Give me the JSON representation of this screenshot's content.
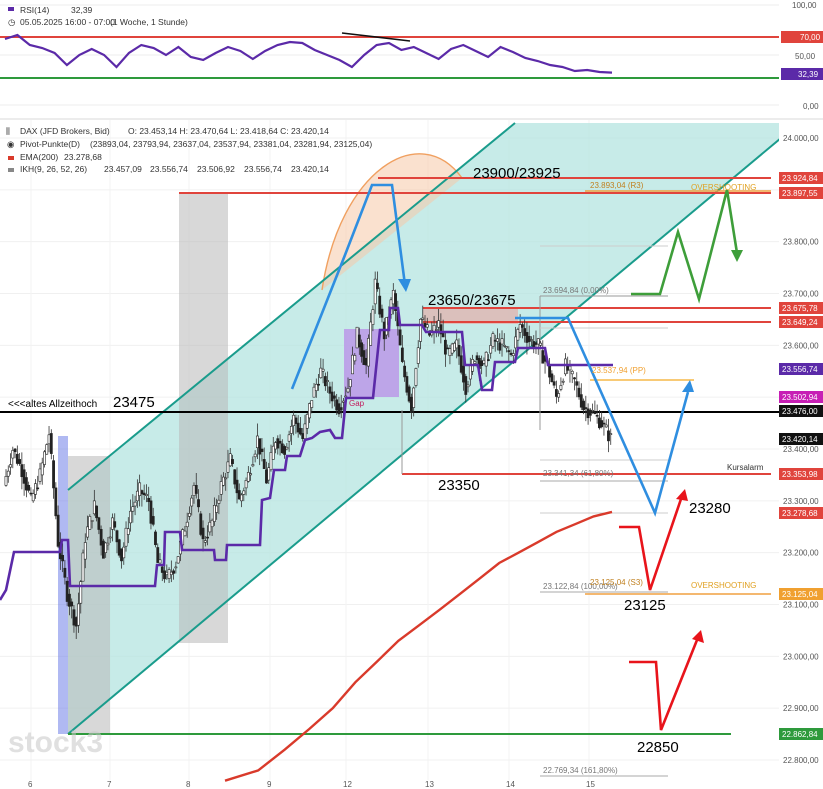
{
  "chart_data": [
    {
      "type": "line",
      "name": "RSI(14)",
      "legend": {
        "indicator": "RSI(14)",
        "indicator_value": "32,39",
        "timeframe": "05.05.2025 16:00 - 07:00",
        "interval": "(1 Woche, 1 Stunde)"
      },
      "y_ticks": [
        "100,00",
        "70,00",
        "50,00",
        "32,39",
        "0,00"
      ],
      "ylim": [
        0,
        100
      ],
      "levels": {
        "upper": 70,
        "lower": 30
      },
      "level_badges": {
        "upper": "70,00",
        "current": "32,39"
      },
      "series": [
        {
          "values": [
            66,
            70,
            60,
            57,
            52,
            40,
            50,
            56,
            50,
            38,
            52,
            60,
            57,
            50,
            58,
            48,
            45,
            52,
            58,
            54,
            46,
            54,
            60,
            63,
            62,
            55,
            50,
            45,
            38,
            50,
            60,
            62,
            55,
            58,
            52,
            46,
            56,
            60,
            54,
            48,
            58,
            53,
            47,
            44,
            40,
            38,
            34,
            35,
            33,
            32.39
          ]
        }
      ]
    },
    {
      "type": "candlestick",
      "name": "DAX",
      "legend": {
        "instrument": "DAX (JFD Brokers, Bid)",
        "ohlc": "O: 23.453,14  H: 23.470,64  L: 23.418,64  C: 23.420,14",
        "pivot": "Pivot-Punkte(D)",
        "pivot_values": "(23893,04, 23793,94, 23637,04, 23537,94, 23381,04, 23281,94, 23125,04)",
        "ema": "EMA(200)",
        "ema_value": "23.278,68",
        "ikh": "IKH(9, 26, 52, 26)",
        "ikh_values": [
          "23.457,09",
          "23.556,74",
          "23.506,92",
          "23.556,74",
          "23.420,14"
        ]
      },
      "x_ticks": [
        "6",
        "7",
        "8",
        "9",
        "12",
        "13",
        "14",
        "15"
      ],
      "y_ticks": [
        "24.000,00",
        "23.900,00",
        "23.800,00",
        "23.700,00",
        "23.600,00",
        "23.500,00",
        "23.400,00",
        "23.300,00",
        "23.200,00",
        "23.100,00",
        "23.000,00",
        "22.900,00",
        "22.800,00"
      ],
      "ylim": [
        22772,
        24040
      ],
      "close_path": [
        23330,
        23400,
        23360,
        23300,
        23350,
        23430,
        23220,
        23120,
        23060,
        23230,
        23290,
        23200,
        23260,
        23190,
        23280,
        23320,
        23300,
        23180,
        23150,
        23180,
        23250,
        23330,
        23220,
        23260,
        23330,
        23380,
        23300,
        23350,
        23420,
        23340,
        23420,
        23400,
        23460,
        23420,
        23500,
        23550,
        23510,
        23480,
        23520,
        23620,
        23560,
        23720,
        23620,
        23700,
        23560,
        23480,
        23650,
        23620,
        23640,
        23580,
        23600,
        23520,
        23580,
        23560,
        23610,
        23600,
        23580,
        23640,
        23610,
        23600,
        23560,
        23500,
        23560,
        23530,
        23480,
        23470,
        23450,
        23420.14
      ],
      "price_badges": [
        "23.924,84",
        "23.897,55",
        "23.675,78",
        "23.649,24",
        "23.556,74",
        "23.502,94",
        "23.476,00",
        "23.420,14",
        "23.353,98",
        "23.278,68",
        "23.125,04",
        "22.862,84"
      ],
      "pivot_labels": [
        {
          "text": "23.893,04 (R3)",
          "value": 23893.04
        },
        {
          "text": "23.694,84 (0,00%)",
          "value": 23694.84
        },
        {
          "text": "23.537,94 (PP)",
          "value": 23537.94
        },
        {
          "text": "23.341,34 (61,80%)",
          "value": 23341.34
        },
        {
          "text": "23.122,84 (100,00%)",
          "value": 23122.84
        },
        {
          "text": "23.125,04 (S3)",
          "value": 23125.04
        },
        {
          "text": "22.769,34 (161,80%)",
          "value": 22769.34
        }
      ],
      "horizontal_levels": {
        "r_top": 23924.84,
        "r_second": 23897.55,
        "resistance_upper": 23675.78,
        "resistance_lower": 23649.24,
        "all_time_high": 23476.0,
        "kursalarm": 23353.98,
        "support_low": 22862.84
      },
      "ema_path": [
        22760,
        22780,
        22820,
        22860,
        22900,
        22950,
        22990,
        23030,
        23060,
        23090,
        23120,
        23150,
        23180,
        23200,
        23220,
        23240,
        23255,
        23270,
        23278.68
      ],
      "annotations": {
        "all_time_high": "<<<altes Allzeithoch",
        "ath_value": "23475",
        "zone_top": "23900/23925",
        "zone_mid": "23650/23675",
        "level_23350": "23350",
        "level_23280": "23280",
        "level_23125": "23125",
        "level_22850": "22850",
        "kursalarm": "Kursalarm",
        "gap": "Gap",
        "overshooting": "OVERSHOOTING"
      },
      "colors": {
        "channel": "#1a9c8c",
        "channel_fill": "#b4e4e0",
        "resistance": "#e0443c",
        "support": "#2e9a3c",
        "ema": "#d93a2b",
        "kijun": "#5b2aa8",
        "forecast_blue": "#2f8ee0",
        "forecast_green": "#3e9e3a",
        "forecast_red": "#e8141b",
        "rsi_line": "#5b2aa8"
      }
    }
  ],
  "watermark": "stock3"
}
